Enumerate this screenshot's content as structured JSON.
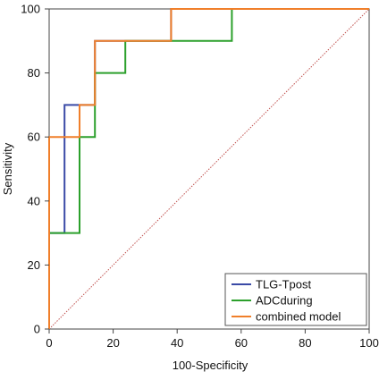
{
  "chart_data": {
    "type": "line",
    "title": "",
    "xlabel": "100-Specificity",
    "ylabel": "Sensitivity",
    "xlim": [
      0,
      100
    ],
    "ylim": [
      0,
      100
    ],
    "xticks": [
      0,
      20,
      40,
      60,
      80,
      100
    ],
    "yticks": [
      0,
      20,
      40,
      60,
      80,
      100
    ],
    "xtick_labels": [
      "0",
      "20",
      "40",
      "60",
      "80",
      "100"
    ],
    "ytick_labels": [
      "0",
      "20",
      "40",
      "60",
      "80",
      "100"
    ],
    "grid": false,
    "legend_position": "bottom-right",
    "reference_line": {
      "x": [
        0,
        100
      ],
      "y": [
        0,
        100
      ],
      "style": "dotted",
      "color": "#c0504d"
    },
    "series": [
      {
        "name": "TLG-Tpost",
        "color": "#3a4aa6",
        "x": [
          0,
          0,
          4.8,
          4.8,
          14.3,
          14.3,
          28.6,
          28.6,
          38.1,
          38.1,
          100
        ],
        "y": [
          0,
          30,
          30,
          70,
          70,
          90,
          90,
          90,
          90,
          100,
          100
        ]
      },
      {
        "name": "ADCduring",
        "color": "#2ca02c",
        "x": [
          0,
          0,
          9.5,
          9.5,
          14.3,
          14.3,
          23.8,
          23.8,
          38.1,
          38.1,
          57.1,
          57.1,
          100
        ],
        "y": [
          0,
          30,
          30,
          60,
          60,
          80,
          80,
          90,
          90,
          90,
          90,
          100,
          100
        ]
      },
      {
        "name": "combined model",
        "color": "#f07f2a",
        "x": [
          0,
          0,
          9.5,
          9.5,
          14.3,
          14.3,
          38.1,
          38.1,
          100
        ],
        "y": [
          0,
          60,
          60,
          70,
          70,
          90,
          90,
          100,
          100
        ]
      }
    ]
  }
}
